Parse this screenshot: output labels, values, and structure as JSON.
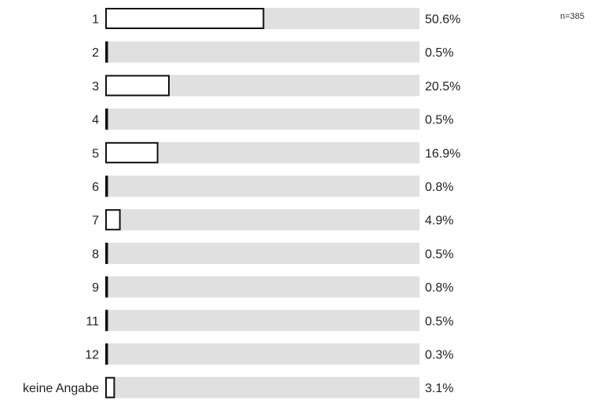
{
  "sample_size_label": "n=385",
  "colors": {
    "track": "#e0e0e0",
    "bar_fill": "#ffffff",
    "bar_stroke": "#111111",
    "text": "#222222"
  },
  "chart_data": {
    "type": "bar",
    "orientation": "horizontal",
    "categories": [
      "1",
      "2",
      "3",
      "4",
      "5",
      "6",
      "7",
      "8",
      "9",
      "11",
      "12",
      "keine Angabe"
    ],
    "values": [
      50.6,
      0.5,
      20.5,
      0.5,
      16.9,
      0.8,
      4.9,
      0.5,
      0.8,
      0.5,
      0.3,
      3.1
    ],
    "value_labels": [
      "50.6%",
      "0.5%",
      "20.5%",
      "0.5%",
      "16.9%",
      "0.8%",
      "4.9%",
      "0.5%",
      "0.8%",
      "0.5%",
      "0.3%",
      "3.1%"
    ],
    "xlim": [
      0,
      100
    ],
    "unit": "%",
    "grid": false,
    "legend": "none"
  }
}
